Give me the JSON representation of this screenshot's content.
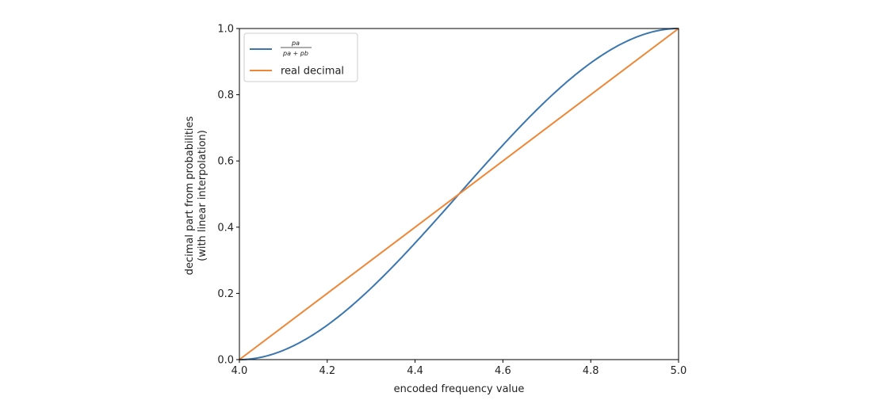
{
  "chart_data": {
    "type": "line",
    "xlabel": "encoded frequency value",
    "ylabel_line1": "decimal part from probabilities",
    "ylabel_line2": "(with linear interpolation)",
    "xlim": [
      4.0,
      5.0
    ],
    "ylim": [
      0.0,
      1.0
    ],
    "xticks": [
      "4.0",
      "4.2",
      "4.4",
      "4.6",
      "4.8",
      "5.0"
    ],
    "yticks": [
      "0.0",
      "0.2",
      "0.4",
      "0.6",
      "0.8",
      "1.0"
    ],
    "grid": false,
    "legend_position": "top-left",
    "series": [
      {
        "name": "pa / (pa + pb)",
        "legend_numerator": "pa",
        "legend_denominator": "pa + pb",
        "color": "#3b76af",
        "x": [
          4.0,
          4.05,
          4.1,
          4.15,
          4.2,
          4.25,
          4.3,
          4.35,
          4.4,
          4.45,
          4.5,
          4.55,
          4.6,
          4.65,
          4.7,
          4.75,
          4.8,
          4.85,
          4.9,
          4.95,
          5.0
        ],
        "y": [
          0.0,
          0.006,
          0.024,
          0.053,
          0.095,
          0.146,
          0.206,
          0.273,
          0.345,
          0.422,
          0.5,
          0.578,
          0.655,
          0.727,
          0.794,
          0.854,
          0.905,
          0.947,
          0.976,
          0.994,
          1.0
        ]
      },
      {
        "name": "real decimal",
        "color": "#ef8636",
        "x": [
          4.0,
          5.0
        ],
        "y": [
          0.0,
          1.0
        ]
      }
    ]
  }
}
